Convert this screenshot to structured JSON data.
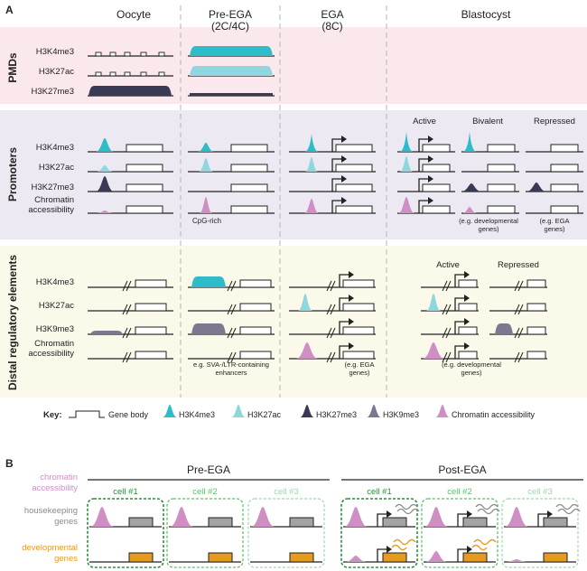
{
  "panel_a": {
    "label": "A",
    "columns": [
      "Oocyte",
      "Pre-EGA\n(2C/4C)",
      "EGA\n(8C)",
      "Blastocyst"
    ],
    "sections": {
      "pmds": "PMDs",
      "promoters": "Promoters",
      "distal": "Distal regulatory elements"
    },
    "pmd_rows": [
      "H3K4me3",
      "H3K27ac",
      "H3K27me3"
    ],
    "promoter_rows": [
      "H3K4me3",
      "H3K27ac",
      "H3K27me3",
      "Chromatin\naccessibility"
    ],
    "distal_rows": [
      "H3K4me3",
      "H3K27ac",
      "H3K9me3",
      "Chromatin\naccessibility"
    ],
    "blast_prom_states": [
      "Active",
      "Bivalent",
      "Repressed"
    ],
    "blast_dist_states": [
      "Active",
      "Repressed"
    ],
    "notes": {
      "cpg": "CpG-rich",
      "dev_genes": "(e.g. developmental\ngenes)",
      "ega_genes_prom": "(e.g. EGA\ngenes)",
      "sva": "e.g. SVA-/LTR-containing\nenhancers",
      "ega_genes_dist": "(e.g. EGA\ngenes)",
      "dev_genes_dist": "(e.g. developmental\ngenes)"
    },
    "key": {
      "title": "Key:",
      "gene_body": "Gene body",
      "items": [
        {
          "label": "H3K4me3",
          "color": "#2dbcc8"
        },
        {
          "label": "H3K27ac",
          "color": "#8fd6df"
        },
        {
          "label": "H3K27me3",
          "color": "#3b3a56"
        },
        {
          "label": "H3K9me3",
          "color": "#7d7890"
        },
        {
          "label": "Chromatin accessibility",
          "color": "#cf8ec4"
        }
      ]
    }
  },
  "panel_b": {
    "label": "B",
    "row_labels": {
      "chromatin": "chromatin\naccessibility",
      "housekeeping": "housekeeping\ngenes",
      "developmental": "developmental\ngenes"
    },
    "groups": [
      "Pre-EGA",
      "Post-EGA"
    ],
    "cells": [
      "cell #1",
      "cell #2",
      "cell #3"
    ]
  },
  "colors": {
    "h3k4me3": "#2dbcc8",
    "h3k27ac": "#8fd6df",
    "h3k27me3": "#3b3a56",
    "h3k9me3": "#7d7890",
    "accessibility": "#cf8ec4",
    "pmd_bg": "#fbe8ec",
    "prom_bg": "#ede9f3",
    "dist_bg": "#fbf9e9",
    "housekeeping": "#a3a3a3",
    "developmental": "#e69a1e",
    "cell_green": "#2e8b3c"
  }
}
